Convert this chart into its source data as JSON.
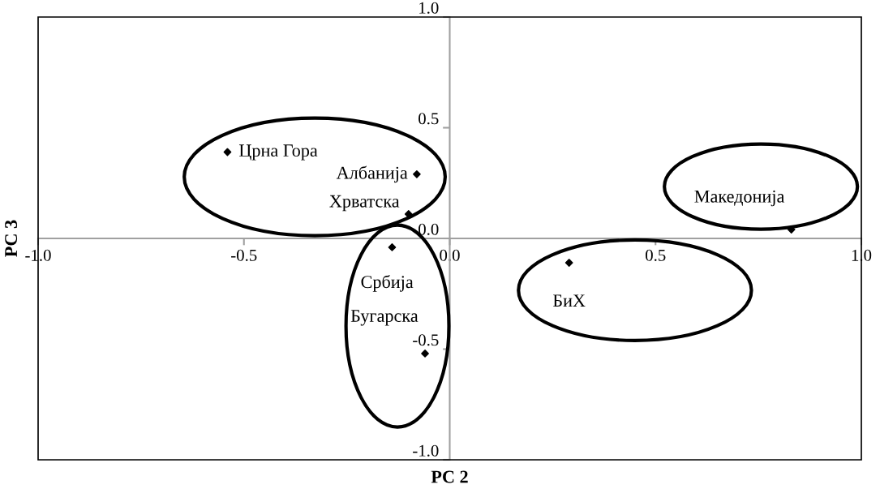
{
  "chart_data": {
    "type": "scatter",
    "xlabel": "PC 2",
    "ylabel": "PC 3",
    "series": [
      {
        "color": "#000000",
        "x": [
          -0.54,
          -0.08,
          -0.1,
          -0.14,
          -0.06,
          0.29,
          0.83
        ],
        "values": [
          0.39,
          0.29,
          0.11,
          -0.04,
          -0.52,
          -0.11,
          0.04
        ]
      }
    ],
    "annotations": [
      {
        "text": "Црна Гора",
        "x": -0.54,
        "y": 0.39
      },
      {
        "text": "Албанија",
        "x": -0.08,
        "y": 0.29
      },
      {
        "text": "Хрватска",
        "x": -0.1,
        "y": 0.11
      },
      {
        "text": "Србија",
        "x": -0.14,
        "y": -0.04
      },
      {
        "text": "Бугарска",
        "x": -0.06,
        "y": -0.52
      },
      {
        "text": "БиХ",
        "x": 0.29,
        "y": -0.11
      },
      {
        "text": "Македонија",
        "x": 0.83,
        "y": 0.04
      }
    ],
    "xlim": [
      -1.0,
      1.0
    ],
    "ylim": [
      -1.0,
      1.0
    ],
    "xticks": [
      {
        "value": -1.0,
        "label": "-1.0"
      },
      {
        "value": -0.5,
        "label": "-0.5"
      },
      {
        "value": 0.0,
        "label": "0.0"
      },
      {
        "value": 0.5,
        "label": "0.5"
      },
      {
        "value": 1.0,
        "label": "1.0"
      }
    ],
    "yticks": [
      {
        "value": -1.0,
        "label": "-1.0"
      },
      {
        "value": -0.5,
        "label": "-0.5"
      },
      {
        "value": 0.0,
        "label": "0.0"
      },
      {
        "value": 0.5,
        "label": "0.5"
      },
      {
        "value": 1.0,
        "label": "1.0"
      }
    ],
    "marker": "diamond",
    "grid": false
  }
}
